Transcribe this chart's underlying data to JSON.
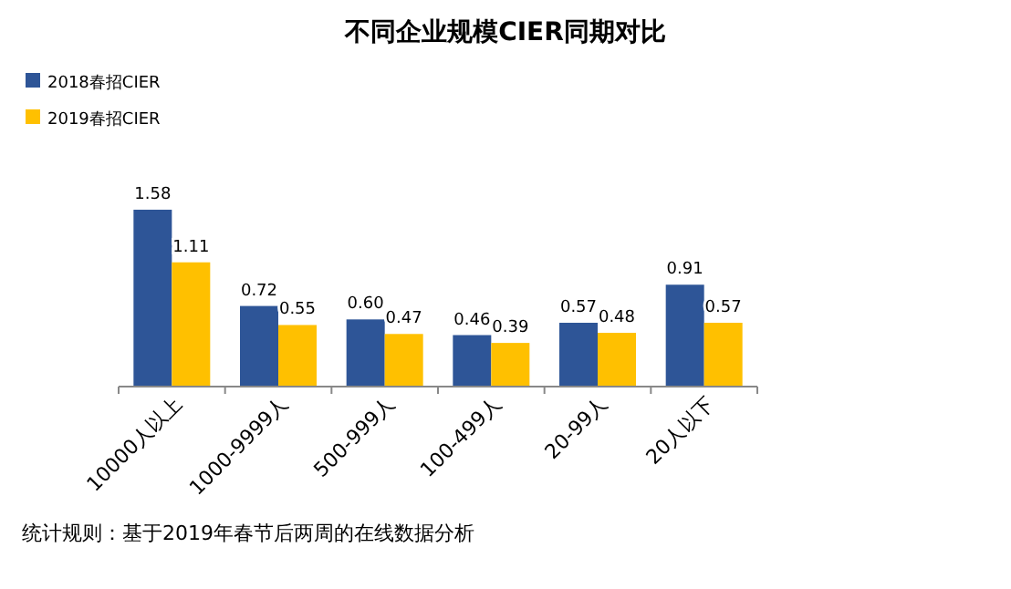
{
  "chart_data": {
    "type": "bar",
    "title": "不同企业规模CIER同期对比",
    "categories": [
      "10000人以上",
      "1000-9999人",
      "500-999人",
      "100-499人",
      "20-99人",
      "20人以下"
    ],
    "series": [
      {
        "name": "2018春招CIER",
        "color": "#2e5597",
        "values": [
          1.58,
          0.72,
          0.6,
          0.46,
          0.57,
          0.91
        ],
        "value_labels": [
          "1.58",
          "0.72",
          "0.60",
          "0.46",
          "0.57",
          "0.91"
        ]
      },
      {
        "name": "2019春招CIER",
        "color": "#ffc000",
        "values": [
          1.11,
          0.55,
          0.47,
          0.39,
          0.48,
          0.57
        ],
        "value_labels": [
          "1.11",
          "0.55",
          "0.47",
          "0.39",
          "0.48",
          "0.57"
        ]
      }
    ],
    "legend": "top left",
    "grid": false,
    "annotations": [
      "统计规则：基于2019年春节后两周的在线数据分析"
    ]
  }
}
